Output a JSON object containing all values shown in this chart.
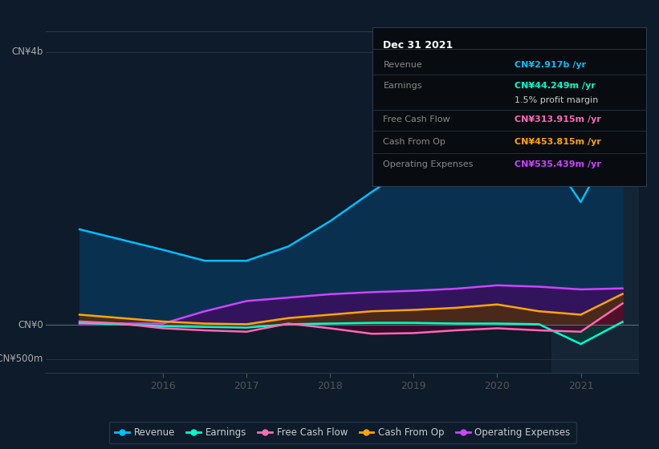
{
  "bg_color": "#0d1b2a",
  "chart_bg": "#0d1b2a",
  "highlight_bg": "#152535",
  "highlight_x_start": 2020.65,
  "highlight_x_end": 2021.7,
  "xmin": 2014.6,
  "xmax": 2021.7,
  "ymin": -700,
  "ymax": 4300,
  "xtick_pos": [
    2016,
    2017,
    2018,
    2019,
    2020,
    2021
  ],
  "xtick_labels": [
    "2016",
    "2017",
    "2018",
    "2019",
    "2020",
    "2021"
  ],
  "x": [
    2015.0,
    2015.5,
    2016.0,
    2016.5,
    2017.0,
    2017.5,
    2018.0,
    2018.5,
    2019.0,
    2019.5,
    2020.0,
    2020.5,
    2021.0,
    2021.5
  ],
  "revenue": [
    1400,
    1250,
    1100,
    940,
    940,
    1150,
    1520,
    1950,
    2350,
    2750,
    3050,
    2700,
    1800,
    2917
  ],
  "earnings": [
    30,
    10,
    -20,
    -30,
    -40,
    10,
    20,
    30,
    30,
    20,
    20,
    10,
    -280,
    44
  ],
  "fcf": [
    50,
    20,
    -50,
    -80,
    -100,
    20,
    -50,
    -130,
    -120,
    -80,
    -50,
    -80,
    -100,
    314
  ],
  "cashop": [
    150,
    100,
    50,
    20,
    10,
    100,
    150,
    200,
    220,
    250,
    300,
    200,
    150,
    454
  ],
  "opex": [
    20,
    20,
    20,
    200,
    350,
    400,
    450,
    480,
    500,
    530,
    580,
    560,
    520,
    535
  ],
  "revenue_line_color": "#00bfff",
  "revenue_fill_color": "#0a3050",
  "earnings_line_color": "#00ffcc",
  "earnings_fill_color": "#004433",
  "fcf_line_color": "#ff69b4",
  "fcf_fill_color": "#550030",
  "cashop_line_color": "#ffa500",
  "cashop_fill_color": "#553300",
  "opex_line_color": "#cc44ff",
  "opex_fill_color": "#3a1060",
  "hline_color": "#2a3a4a",
  "zero_line_color": "#5a6a7a",
  "infobox_bg": "#080c10",
  "infobox_border": "#2a3a4a",
  "infobox_title": "Dec 31 2021",
  "infobox_rows": [
    {
      "label": "Revenue",
      "value": "CN¥2.917b /yr",
      "value_color": "#00bfff"
    },
    {
      "label": "Earnings",
      "value": "CN¥44.249m /yr",
      "value_color": "#00ffcc"
    },
    {
      "label": "",
      "value": "1.5% profit margin",
      "value_color": "#cccccc"
    },
    {
      "label": "Free Cash Flow",
      "value": "CN¥313.915m /yr",
      "value_color": "#ff69b4"
    },
    {
      "label": "Cash From Op",
      "value": "CN¥453.815m /yr",
      "value_color": "#ffa500"
    },
    {
      "label": "Operating Expenses",
      "value": "CN¥535.439m /yr",
      "value_color": "#cc44ff"
    }
  ],
  "legend_items": [
    {
      "label": "Revenue",
      "color": "#00bfff"
    },
    {
      "label": "Earnings",
      "color": "#00ffcc"
    },
    {
      "label": "Free Cash Flow",
      "color": "#ff69b4"
    },
    {
      "label": "Cash From Op",
      "color": "#ffa500"
    },
    {
      "label": "Operating Expenses",
      "color": "#cc44ff"
    }
  ]
}
